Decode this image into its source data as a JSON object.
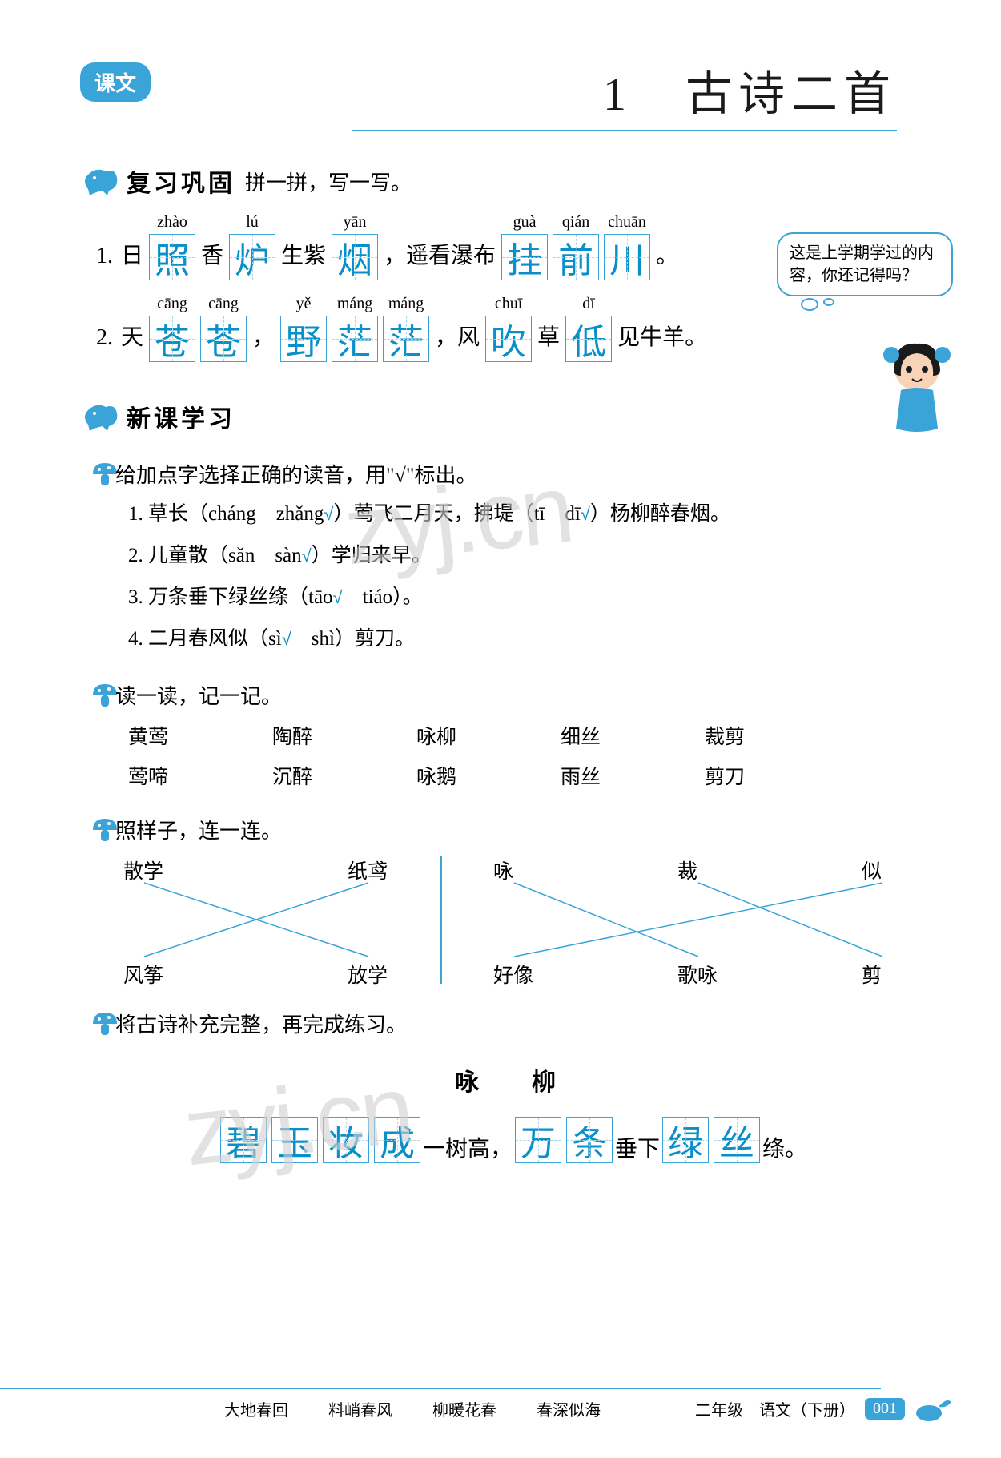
{
  "colors": {
    "accent": "#3aa4d8",
    "answer": "#0a8fc8",
    "text": "#000000",
    "watermark": "#d0d0d0",
    "bg": "#ffffff"
  },
  "header": {
    "badge": "课文",
    "number": "1",
    "title": "古诗二首"
  },
  "sec_review": {
    "title": "复习巩固",
    "sub": "拼一拼，写一写。",
    "line1": {
      "num": "1.",
      "parts": [
        {
          "plain": "日"
        },
        {
          "pinyin": "zhào",
          "char": "照"
        },
        {
          "plain": "香"
        },
        {
          "pinyin": "lú",
          "char": "炉"
        },
        {
          "plain": "生紫"
        },
        {
          "pinyin": "yān",
          "char": "烟"
        },
        {
          "plain": "，遥看瀑布"
        },
        {
          "pinyin": "guà",
          "char": "挂"
        },
        {
          "pinyin": "qián",
          "char": "前"
        },
        {
          "pinyin": "chuān",
          "char": "川"
        },
        {
          "plain": "。"
        }
      ]
    },
    "line2": {
      "num": "2.",
      "parts": [
        {
          "plain": "天"
        },
        {
          "pinyin": "cāng",
          "char": "苍"
        },
        {
          "pinyin": "cāng",
          "char": "苍"
        },
        {
          "plain": "，"
        },
        {
          "pinyin": "yě",
          "char": "野"
        },
        {
          "pinyin": "máng",
          "char": "茫"
        },
        {
          "pinyin": "máng",
          "char": "茫"
        },
        {
          "plain": "，风"
        },
        {
          "pinyin": "chuī",
          "char": "吹"
        },
        {
          "plain": "草"
        },
        {
          "pinyin": "dī",
          "char": "低"
        },
        {
          "plain": "见牛羊。"
        }
      ]
    },
    "bubble": "这是上学期学过的内容，你还记得吗？"
  },
  "sec_new": {
    "title": "新课学习"
  },
  "q1": {
    "title": "给加点字选择正确的读音，用\"√\"标出。",
    "items": [
      "1. 草长（cháng　zhǎng<span class=\"check\">√</span>）莺飞二月天，拂堤（tī　dī<span class=\"check\">√</span>）杨柳醉春烟。",
      "2. 儿童散（sǎn　sàn<span class=\"check\">√</span>）学归来早。",
      "3. 万条垂下绿丝绦（tāo<span class=\"check\">√</span>　tiáo）。",
      "4. 二月春风似（sì<span class=\"check\">√</span>　shì）剪刀。"
    ]
  },
  "q2": {
    "title": "读一读，记一记。",
    "rows": [
      [
        "黄莺",
        "陶醉",
        "咏柳",
        "细丝",
        "裁剪"
      ],
      [
        "莺啼",
        "沉醉",
        "咏鹅",
        "雨丝",
        "剪刀"
      ]
    ]
  },
  "q3": {
    "title": "照样子，连一连。",
    "left": {
      "top": [
        "散学",
        "纸鸢"
      ],
      "bottom": [
        "风筝",
        "放学"
      ],
      "lines": [
        [
          0,
          1
        ],
        [
          1,
          0
        ]
      ]
    },
    "right": {
      "top": [
        "咏",
        "裁",
        "似"
      ],
      "bottom": [
        "好像",
        "歌咏",
        "剪"
      ],
      "lines": [
        [
          0,
          1
        ],
        [
          1,
          2
        ],
        [
          2,
          0
        ]
      ]
    },
    "line_color": "#3aa4d8",
    "line_width": 1.5
  },
  "q4": {
    "title": "将古诗补充完整，再完成练习。",
    "poem_title": "咏　柳",
    "poem_line": [
      {
        "pinyin": "",
        "char": "碧"
      },
      {
        "pinyin": "",
        "char": "玉"
      },
      {
        "pinyin": "",
        "char": "妆"
      },
      {
        "pinyin": "",
        "char": "成"
      },
      {
        "plain": "一树高，"
      },
      {
        "pinyin": "",
        "char": "万"
      },
      {
        "pinyin": "",
        "char": "条"
      },
      {
        "plain": "垂下"
      },
      {
        "pinyin": "",
        "char": "绿"
      },
      {
        "pinyin": "",
        "char": "丝"
      },
      {
        "plain": "绦。"
      }
    ]
  },
  "watermarks": [
    "zyj.cn",
    "zyj.cn"
  ],
  "footer": {
    "idioms": [
      "大地春回",
      "料峭春风",
      "柳暖花春",
      "春深似海"
    ],
    "grade": "二年级　语文（下册）",
    "page": "001"
  }
}
